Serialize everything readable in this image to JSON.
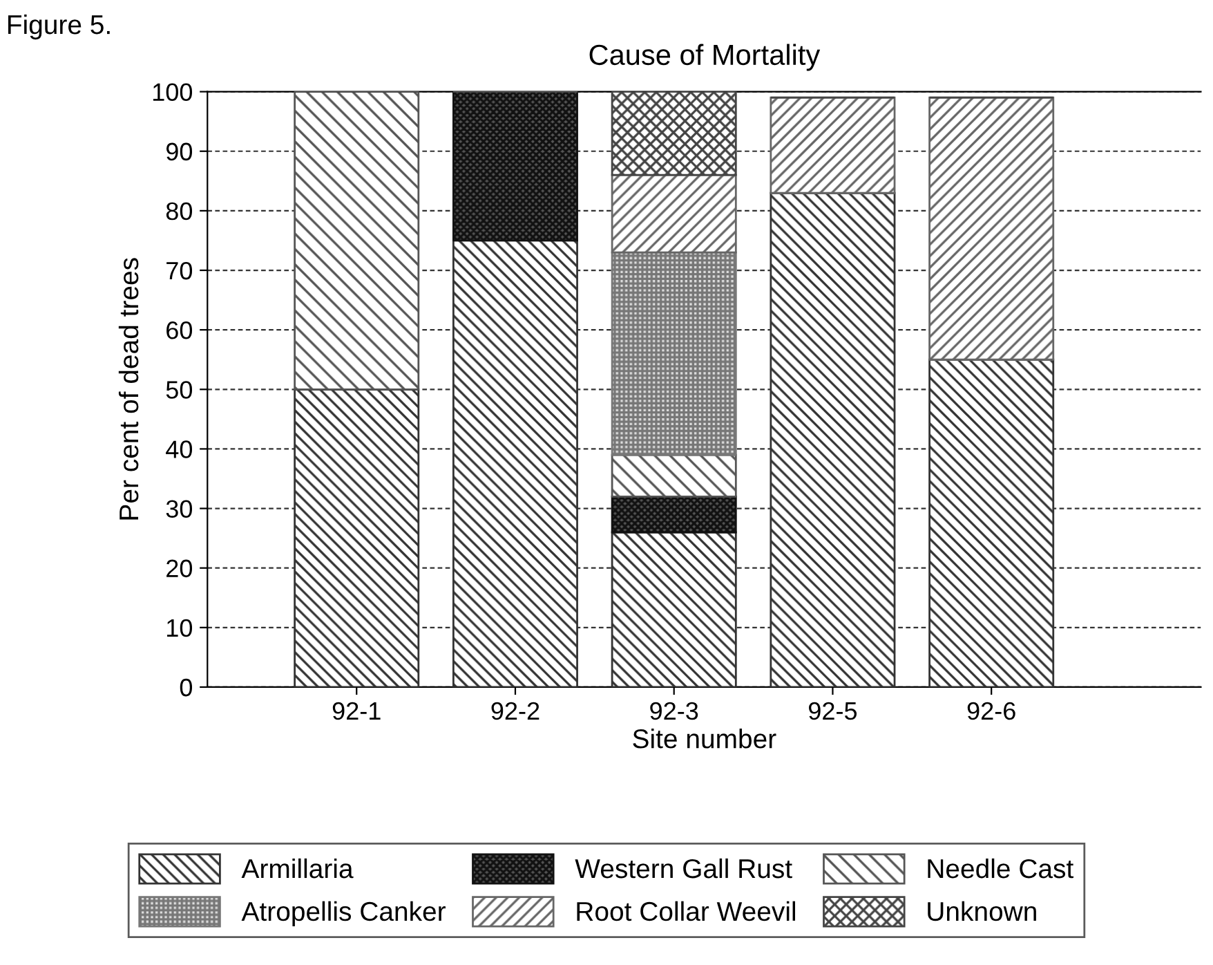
{
  "chart_data": {
    "type": "bar",
    "stacked": true,
    "title": "Cause of Mortality",
    "xlabel": "Site number",
    "ylabel": "Per cent of dead trees",
    "annotations": [
      "Figure 5."
    ],
    "categories": [
      "92-1",
      "92-2",
      "92-3",
      "92-5",
      "92-6"
    ],
    "series": [
      {
        "name": "Armillaria",
        "color": "#333333",
        "values": [
          50,
          75,
          26,
          83,
          55
        ]
      },
      {
        "name": "Western Gall Rust",
        "color": "#111111",
        "values": [
          0,
          25,
          6,
          0,
          0
        ]
      },
      {
        "name": "Needle Cast",
        "color": "#555555",
        "values": [
          50,
          0,
          7,
          0,
          0
        ]
      },
      {
        "name": "Atropellis Canker",
        "color": "#777777",
        "values": [
          0,
          0,
          34,
          0,
          0
        ]
      },
      {
        "name": "Root Collar Weevil",
        "color": "#666666",
        "values": [
          0,
          0,
          13,
          16,
          44
        ]
      },
      {
        "name": "Unknown",
        "color": "#444444",
        "values": [
          0,
          0,
          14,
          0,
          0
        ]
      }
    ],
    "ylim": [
      0,
      100
    ],
    "yticks": [
      0,
      10,
      20,
      30,
      40,
      50,
      60,
      70,
      80,
      90,
      100
    ],
    "grid": "y",
    "legend": "bottom"
  }
}
